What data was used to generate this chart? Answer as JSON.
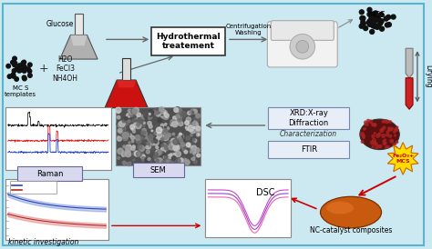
{
  "bg_color": "#cce8f0",
  "border_color": "#5ab4d0",
  "top_labels": {
    "glucose": "Glucose",
    "mcs": "MCS",
    "mcs_templates": "MC S\ntemplates",
    "chemicals": "H2O\nFeCl3\nNH4OH",
    "hydrothermal": "Hydrothermal\ntreatement",
    "centrifugation": "Centrifugation\nWashing",
    "drying": "Drying"
  },
  "bottom_labels": {
    "raman": "Raman",
    "sem": "SEM",
    "xrd": "XRD:X-ray\nDiffraction",
    "characterization": "Characterization",
    "ftir": "FTIR",
    "dsc": "DSC",
    "nc_catalyst": "NC-catalyst composites",
    "kinetic": "kinetic investigation",
    "fe2o3_mcs": "Fe₂O₃+\nMCS"
  },
  "arrow_color": "#666666",
  "red_arrow_color": "#cc0000",
  "box_fill": "#e8e8f0",
  "box_edge": "#888888"
}
